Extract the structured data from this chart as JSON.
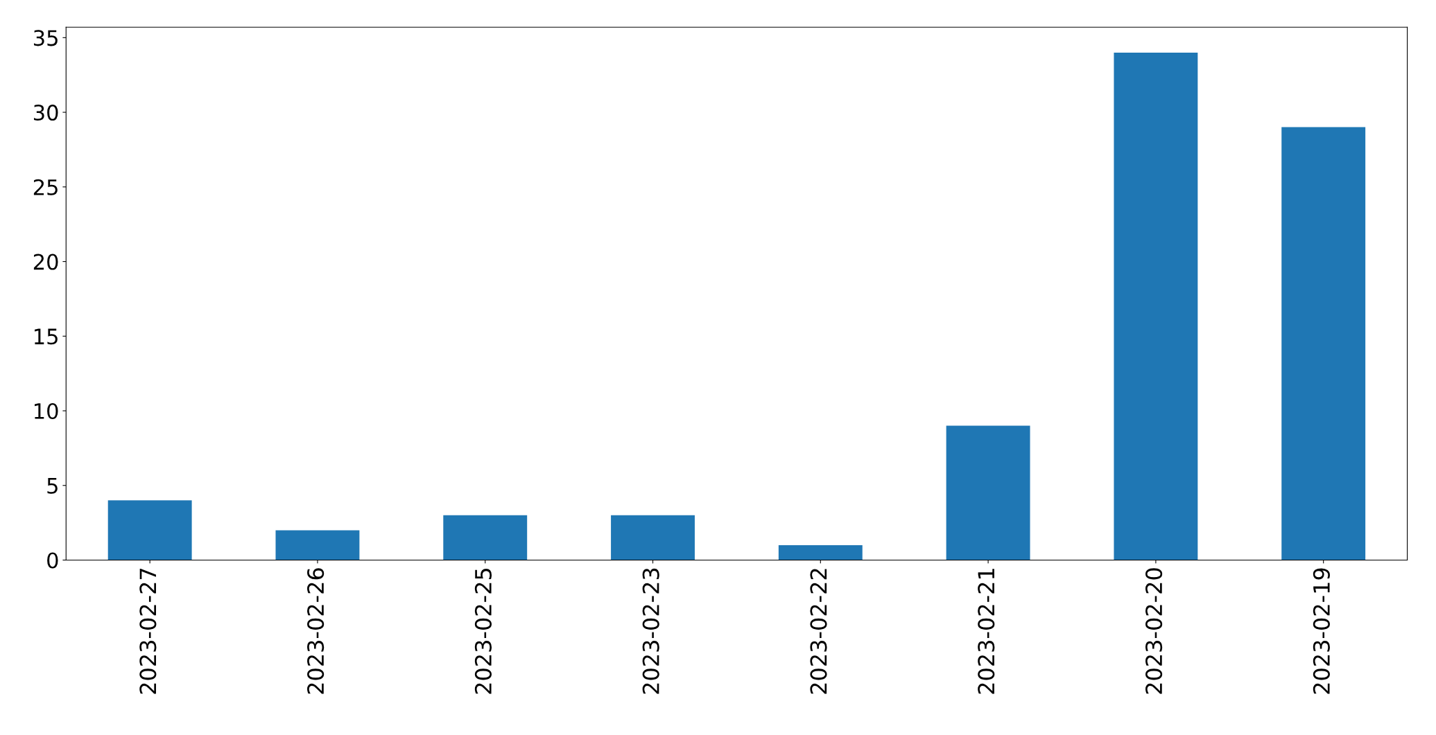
{
  "chart_data": {
    "type": "bar",
    "categories": [
      "2023-02-27",
      "2023-02-26",
      "2023-02-25",
      "2023-02-23",
      "2023-02-22",
      "2023-02-21",
      "2023-02-20",
      "2023-02-19"
    ],
    "values": [
      4,
      2,
      3,
      3,
      1,
      9,
      34,
      29
    ],
    "color": "#1f77b4",
    "ylim": [
      0,
      35.7
    ],
    "yticks": [
      0,
      5,
      10,
      15,
      20,
      25,
      30,
      35
    ],
    "grid": false
  }
}
